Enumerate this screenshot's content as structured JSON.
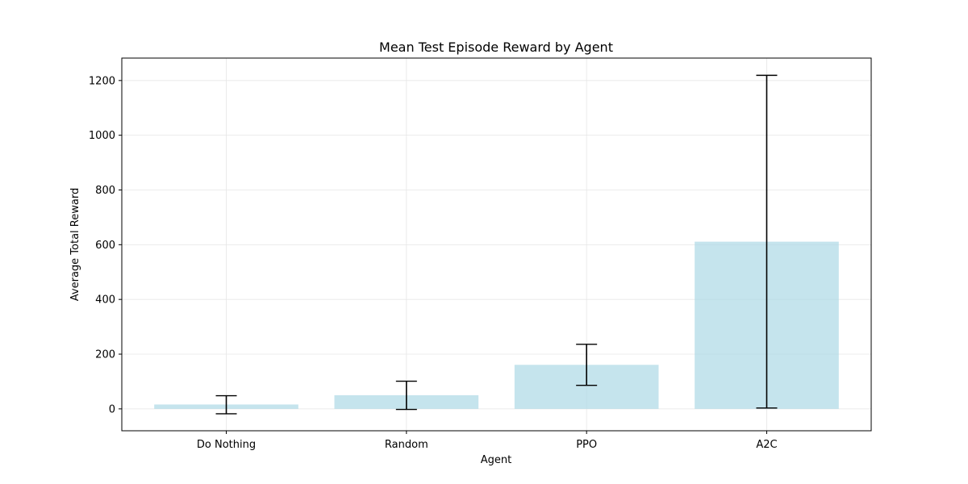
{
  "chart_data": {
    "type": "bar",
    "title": "Mean Test Episode Reward by Agent",
    "xlabel": "Agent",
    "ylabel": "Average Total Reward",
    "categories": [
      "Do Nothing",
      "Random",
      "PPO",
      "A2C"
    ],
    "values": [
      16,
      50,
      161,
      611
    ],
    "error_low": [
      -18,
      -2,
      86,
      3
    ],
    "error_high": [
      48,
      101,
      236,
      1219
    ],
    "ylim": [
      -80,
      1282
    ],
    "yticks": [
      0,
      200,
      400,
      600,
      800,
      1000,
      1200
    ],
    "grid": true,
    "colors": {
      "bar": "#add8e6",
      "error": "#000000",
      "grid": "#e6e6e6",
      "axis": "#000000"
    }
  }
}
